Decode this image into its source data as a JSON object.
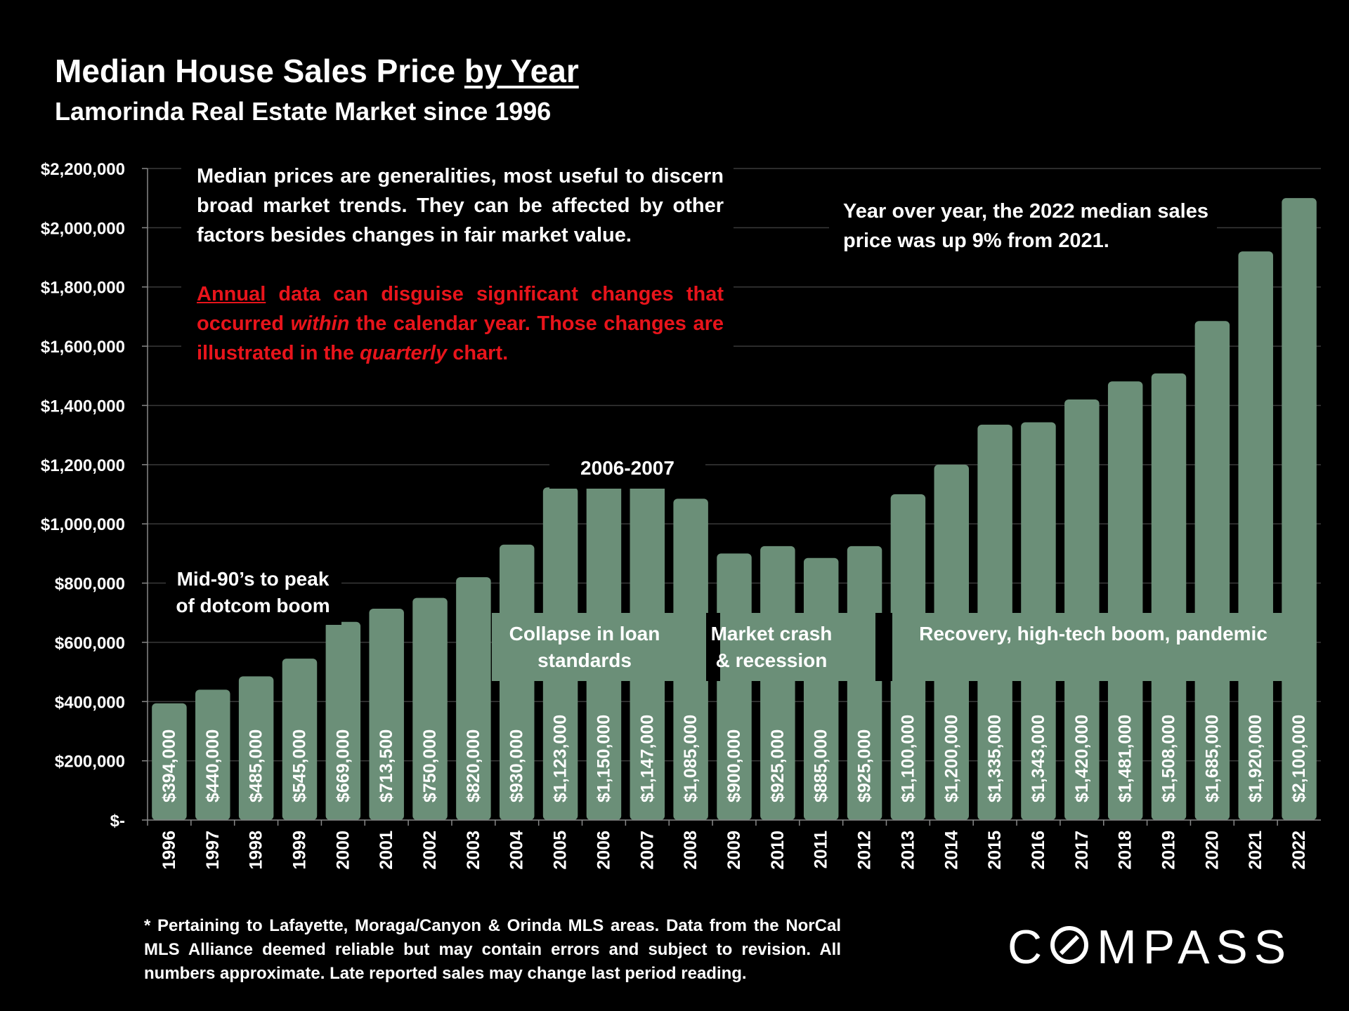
{
  "header": {
    "title_main": "Median House Sales Price ",
    "title_underlined": "by Year",
    "subtitle": "Lamorinda Real Estate Market since 1996"
  },
  "notes": {
    "median_p1": "Median prices are generalities, most useful to discern broad market trends. They can be affected by other factors besides changes in fair market value.",
    "annual_word": "Annual",
    "annual_p2a": " data can disguise significant changes that occurred ",
    "within_word": "within",
    "annual_p2b": " the calendar year. Those changes are illustrated in the ",
    "quarterly_word": "quarterly",
    "annual_p2c": " chart.",
    "yoy": "Year over year, the 2022 median sales price was up 9% from 2021."
  },
  "annotations": {
    "mid90s": [
      "Mid-90’s to peak",
      "of dotcom boom"
    ],
    "peak": "2006-2007",
    "collapse": [
      "Collapse in loan",
      "standards"
    ],
    "crash": [
      "Market crash",
      "& recession"
    ],
    "recovery": "Recovery, high-tech boom, pandemic"
  },
  "footer": {
    "text": "* Pertaining to Lafayette, Moraga/Canyon & Orinda MLS areas. Data from the NorCal MLS Alliance deemed reliable but may contain errors and subject to revision. All numbers approximate. Late reported sales may change last period reading."
  },
  "logo": {
    "text": "COMPASS"
  },
  "colors": {
    "bar": "#6b8f78",
    "background": "#000000",
    "accent_red": "#e8141b",
    "grid": "#3a3a3a"
  },
  "chart_data": {
    "type": "bar",
    "title": "Median House Sales Price by Year",
    "xlabel": "",
    "ylabel": "",
    "ylim": [
      0,
      2200000
    ],
    "ytick_values": [
      0,
      200000,
      400000,
      600000,
      800000,
      1000000,
      1200000,
      1400000,
      1600000,
      1800000,
      2000000,
      2200000
    ],
    "ytick_labels": [
      "$-",
      "$200,000",
      "$400,000",
      "$600,000",
      "$800,000",
      "$1,000,000",
      "$1,200,000",
      "$1,400,000",
      "$1,600,000",
      "$1,800,000",
      "$2,000,000",
      "$2,200,000"
    ],
    "categories": [
      "1996",
      "1997",
      "1998",
      "1999",
      "2000",
      "2001",
      "2002",
      "2003",
      "2004",
      "2005",
      "2006",
      "2007",
      "2008",
      "2009",
      "2010",
      "2011",
      "2012",
      "2013",
      "2014",
      "2015",
      "2016",
      "2017",
      "2018",
      "2019",
      "2020",
      "2021",
      "2022"
    ],
    "values": [
      394000,
      440000,
      485000,
      545000,
      669000,
      713500,
      750000,
      820000,
      930000,
      1123000,
      1150000,
      1147000,
      1085000,
      900000,
      925000,
      885000,
      925000,
      1100000,
      1200000,
      1335000,
      1343000,
      1420000,
      1481000,
      1508000,
      1685000,
      1920000,
      2100000
    ],
    "value_labels": [
      "$394,000",
      "$440,000",
      "$485,000",
      "$545,000",
      "$669,000",
      "$713,500",
      "$750,000",
      "$820,000",
      "$930,000",
      "$1,123,000",
      "$1,150,000",
      "$1,147,000",
      "$1,085,000",
      "$900,000",
      "$925,000",
      "$885,000",
      "$925,000",
      "$1,100,000",
      "$1,200,000",
      "$1,335,000",
      "$1,343,000",
      "$1,420,000",
      "$1,481,000",
      "$1,508,000",
      "$1,685,000",
      "$1,920,000",
      "$2,100,000"
    ]
  }
}
